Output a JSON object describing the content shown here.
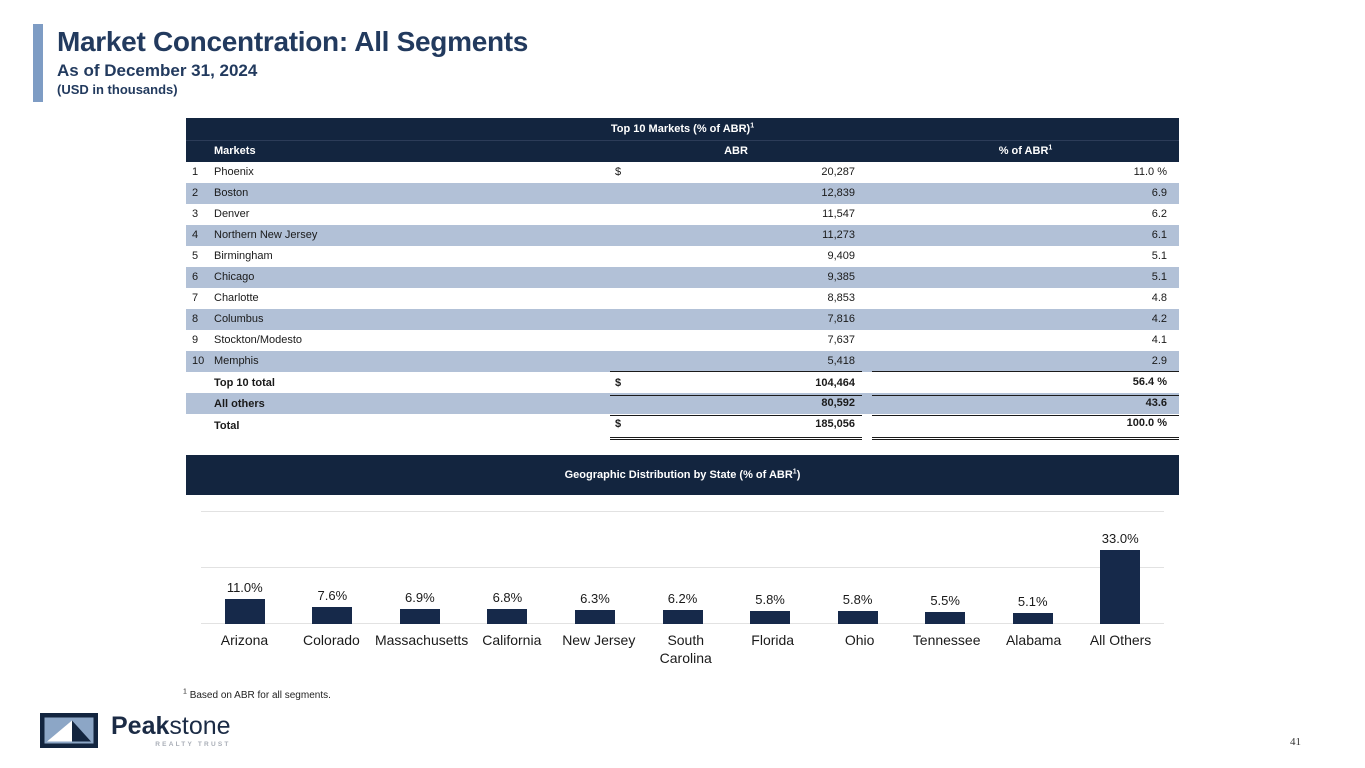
{
  "header": {
    "title": "Market Concentration: All Segments",
    "subtitle": "As of December 31, 2024",
    "units_note": "(USD in thousands)"
  },
  "table": {
    "title_prefix": "Top 10 Markets (% of ABR)",
    "title_sup": "1",
    "col_markets": "Markets",
    "col_abr": "ABR",
    "col_pct": "% of ABR",
    "col_pct_sup": "1",
    "rows": [
      {
        "rank": "1",
        "market": "Phoenix",
        "dollar": "$",
        "abr": "20,287",
        "pct": "11.0 %"
      },
      {
        "rank": "2",
        "market": "Boston",
        "dollar": "",
        "abr": "12,839",
        "pct": "6.9"
      },
      {
        "rank": "3",
        "market": "Denver",
        "dollar": "",
        "abr": "11,547",
        "pct": "6.2"
      },
      {
        "rank": "4",
        "market": "Northern New Jersey",
        "dollar": "",
        "abr": "11,273",
        "pct": "6.1"
      },
      {
        "rank": "5",
        "market": "Birmingham",
        "dollar": "",
        "abr": "9,409",
        "pct": "5.1"
      },
      {
        "rank": "6",
        "market": "Chicago",
        "dollar": "",
        "abr": "9,385",
        "pct": "5.1"
      },
      {
        "rank": "7",
        "market": "Charlotte",
        "dollar": "",
        "abr": "8,853",
        "pct": "4.8"
      },
      {
        "rank": "8",
        "market": "Columbus",
        "dollar": "",
        "abr": "7,816",
        "pct": "4.2"
      },
      {
        "rank": "9",
        "market": "Stockton/Modesto",
        "dollar": "",
        "abr": "7,637",
        "pct": "4.1"
      },
      {
        "rank": "10",
        "market": "Memphis",
        "dollar": "",
        "abr": "5,418",
        "pct": "2.9"
      }
    ],
    "totals": [
      {
        "label": "Top 10 total",
        "dollar": "$",
        "abr": "104,464",
        "pct": "56.4 %"
      },
      {
        "label": "All others",
        "dollar": "",
        "abr": "80,592",
        "pct": "43.6"
      },
      {
        "label": "Total",
        "dollar": "$",
        "abr": "185,056",
        "pct": "100.0 %"
      }
    ]
  },
  "chart_data": {
    "type": "bar",
    "title_prefix": "Geographic Distribution by State (% of ABR",
    "title_sup": "1",
    "title_suffix": ")",
    "categories": [
      "Arizona",
      "Colorado",
      "Massachusetts",
      "California",
      "New Jersey",
      "South Carolina",
      "Florida",
      "Ohio",
      "Tennessee",
      "Alabama",
      "All Others"
    ],
    "values": [
      11.0,
      7.6,
      6.9,
      6.8,
      6.3,
      6.2,
      5.8,
      5.8,
      5.5,
      5.1,
      33.0
    ],
    "value_labels": [
      "11.0%",
      "7.6%",
      "6.9%",
      "6.8%",
      "6.3%",
      "6.2%",
      "5.8%",
      "5.8%",
      "5.5%",
      "5.1%",
      "33.0%"
    ],
    "xlabel": "",
    "ylabel": "",
    "ylim": [
      0,
      52
    ],
    "gridline_interval": 25,
    "grid": "horizontal",
    "legend": "none",
    "bar_color": "#16294A"
  },
  "footnote": {
    "sup": "1",
    "text": "Based on ABR for all segments."
  },
  "footer": {
    "brand_bold": "Peak",
    "brand_light": "stone",
    "tagline": "REALTY TRUST",
    "page_number": "41"
  },
  "colors": {
    "navy": "#13253F",
    "row_stripe": "#B2C1D7",
    "accent_bar": "#7E9CC4",
    "title_text": "#223A5E",
    "bar": "#16294A"
  }
}
